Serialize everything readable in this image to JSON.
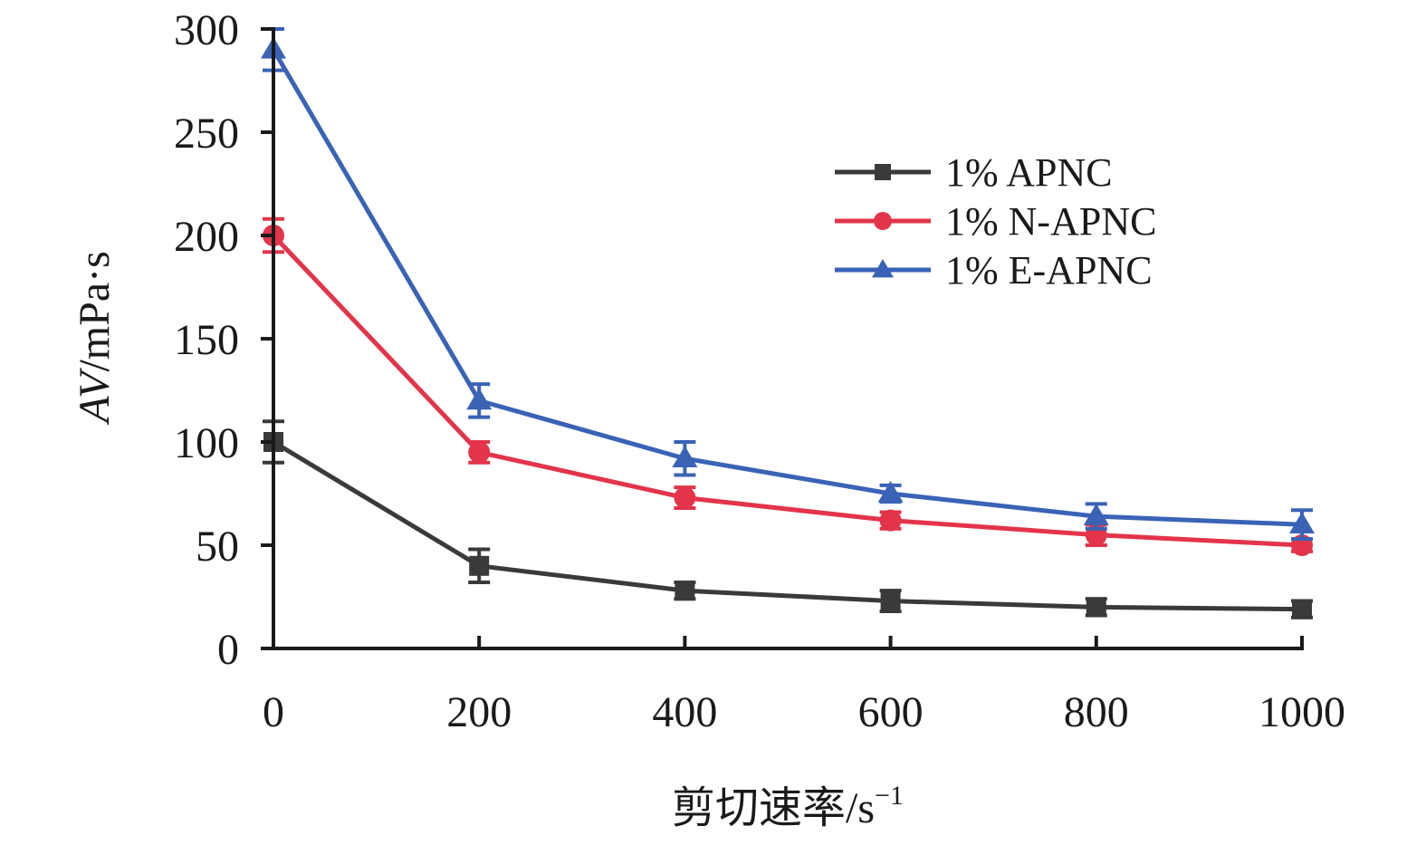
{
  "chart_data": {
    "type": "line",
    "xlabel": "剪切速率/s",
    "xlabel_superscript": "−1",
    "ylabel": "AV/mPa·s",
    "ylabel_italic_part": "AV",
    "ylabel_rest": "/mPa·s",
    "x": [
      0,
      200,
      400,
      600,
      800,
      1000
    ],
    "xlim": [
      0,
      1000
    ],
    "ylim": [
      0,
      300
    ],
    "xticks": [
      0,
      200,
      400,
      600,
      800,
      1000
    ],
    "yticks": [
      0,
      50,
      100,
      150,
      200,
      250,
      300
    ],
    "grid": false,
    "legend_position": "upper-right",
    "series": [
      {
        "name": "1% APNC",
        "color": "#3a3a3a",
        "marker": "square",
        "values": [
          100,
          40,
          28,
          23,
          20,
          19
        ],
        "errors": [
          10,
          8,
          4,
          5,
          4,
          4
        ]
      },
      {
        "name": "1% N-APNC",
        "color": "#e3344a",
        "marker": "circle",
        "values": [
          200,
          95,
          73,
          62,
          55,
          50
        ],
        "errors": [
          8,
          5,
          5,
          4,
          5,
          3
        ]
      },
      {
        "name": "1% E-APNC",
        "color": "#3a63b6",
        "marker": "triangle",
        "values": [
          290,
          120,
          92,
          75,
          64,
          60
        ],
        "errors": [
          10,
          8,
          8,
          4,
          6,
          7
        ]
      }
    ]
  }
}
